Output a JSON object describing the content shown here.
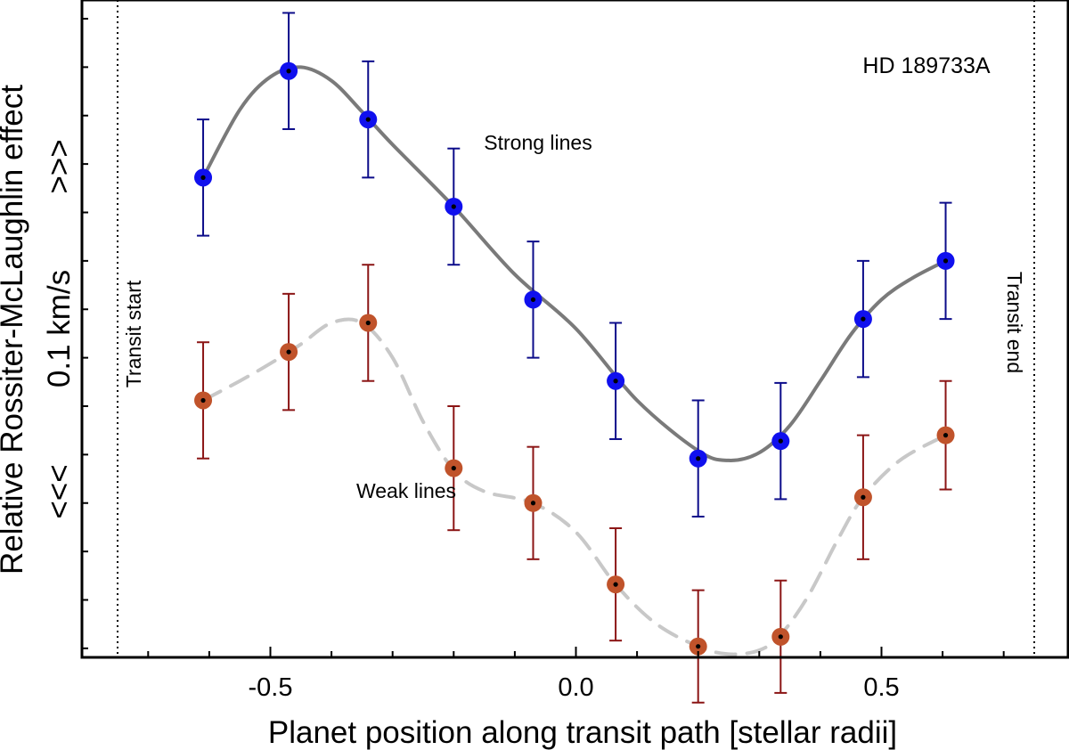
{
  "chart_data": {
    "type": "scatter",
    "title": "HD 189733A",
    "xlabel": "Planet position along transit path [stellar radii]",
    "ylabel": "Relative Rossiter-McLaughlin effect",
    "y_scale_label": "0.1 km/s",
    "y_arrow_up": ">>>",
    "y_arrow_down": "<<<",
    "xlim": [
      -0.8,
      0.8
    ],
    "ylim": [
      -0.32,
      0.16
    ],
    "x_ticks": [
      -0.5,
      0.0,
      0.5
    ],
    "x_tick_labels": [
      "-0.5",
      "0.0",
      "0.5"
    ],
    "y_major_ticks": [
      0.1,
      0.0,
      -0.1,
      -0.2
    ],
    "y_minor_step": 0.025,
    "series": [
      {
        "name": "Strong lines",
        "color": "#1010ee",
        "errbar_color": "#0c0c8a",
        "curve_color": "#7a7a7a",
        "curve_style": "solid",
        "x": [
          -0.61,
          -0.47,
          -0.34,
          -0.2,
          -0.07,
          0.065,
          0.2,
          0.335,
          0.47,
          0.605
        ],
        "y": [
          0.078,
          0.133,
          0.108,
          0.063,
          0.015,
          -0.027,
          -0.067,
          -0.058,
          0.005,
          0.035
        ],
        "err": [
          0.03,
          0.03,
          0.03,
          0.03,
          0.03,
          0.03,
          0.03,
          0.03,
          0.03,
          0.03
        ],
        "curve_x": [
          -0.61,
          -0.55,
          -0.5,
          -0.45,
          -0.4,
          -0.35,
          -0.3,
          -0.2,
          -0.1,
          0.0,
          0.1,
          0.2,
          0.25,
          0.3,
          0.35,
          0.4,
          0.45,
          0.5,
          0.55,
          0.605
        ],
        "curve_y": [
          0.078,
          0.113,
          0.13,
          0.135,
          0.128,
          0.112,
          0.095,
          0.063,
          0.028,
          0.0,
          -0.037,
          -0.063,
          -0.068,
          -0.064,
          -0.05,
          -0.027,
          -0.003,
          0.015,
          0.026,
          0.035
        ]
      },
      {
        "name": "Weak lines",
        "color": "#c0532b",
        "errbar_color": "#8b1515",
        "curve_color": "#c8c8c8",
        "curve_style": "dashed",
        "x": [
          -0.61,
          -0.47,
          -0.34,
          -0.2,
          -0.07,
          0.065,
          0.2,
          0.335,
          0.47,
          0.605
        ],
        "y": [
          -0.037,
          -0.012,
          0.003,
          -0.072,
          -0.09,
          -0.132,
          -0.164,
          -0.159,
          -0.087,
          -0.055
        ],
        "err": [
          0.03,
          0.03,
          0.03,
          0.032,
          0.029,
          0.029,
          0.029,
          0.029,
          0.032,
          0.028
        ],
        "curve_x": [
          -0.61,
          -0.55,
          -0.5,
          -0.45,
          -0.4,
          -0.35,
          -0.3,
          -0.25,
          -0.2,
          -0.15,
          -0.07,
          0.0,
          0.065,
          0.13,
          0.2,
          0.25,
          0.3,
          0.335,
          0.38,
          0.43,
          0.47,
          0.53,
          0.605
        ],
        "curve_y": [
          -0.037,
          -0.027,
          -0.018,
          -0.008,
          0.003,
          0.003,
          -0.015,
          -0.048,
          -0.073,
          -0.084,
          -0.09,
          -0.105,
          -0.132,
          -0.152,
          -0.164,
          -0.168,
          -0.166,
          -0.158,
          -0.138,
          -0.108,
          -0.087,
          -0.068,
          -0.055
        ]
      }
    ],
    "annotations": {
      "strong_label": "Strong lines",
      "weak_label": "Weak lines",
      "transit_start": "Transit start",
      "transit_end": "Transit end",
      "transit_start_x": -0.75,
      "transit_end_x": 0.75
    }
  }
}
